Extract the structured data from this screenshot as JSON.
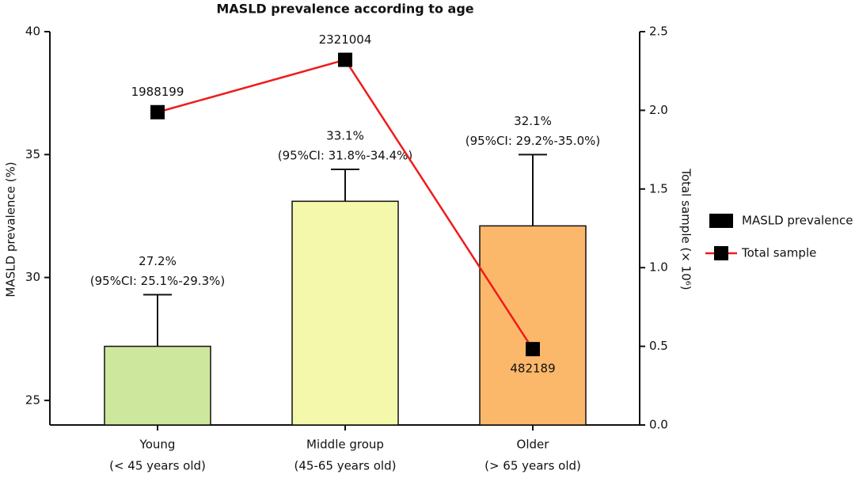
{
  "chart_data": {
    "type": "bar",
    "title": "MASLD prevalence according to age",
    "y_label": "MASLD prevalence (%)",
    "y2_label": "Total sample (× 10⁶)",
    "categories": [
      "Young",
      "Middle group",
      "Older"
    ],
    "category_notes": [
      "(< 45 years old)",
      "(45-65 years old)",
      "(> 65 years old)"
    ],
    "series": [
      {
        "name": "MASLD prevalence",
        "type": "bar",
        "color": "#000000",
        "bar_colors": [
          "#cde89d",
          "#f3f8aa",
          "#fbb86b"
        ],
        "values": [
          27.2,
          33.1,
          32.1
        ],
        "value_labels": [
          "27.2%",
          "33.1%",
          "32.1%"
        ],
        "ci_low": [
          25.1,
          31.8,
          29.2
        ],
        "ci_high": [
          29.3,
          34.4,
          35.0
        ],
        "ci_labels": [
          "(95%CI: 25.1%-29.3%)",
          "(95%CI: 31.8%-34.4%)",
          "(95%CI: 29.2%-35.0%)"
        ]
      },
      {
        "name": "Total sample",
        "type": "line",
        "axis": "y2",
        "color": "#ee1c1c",
        "values": [
          1.988199,
          2.321004,
          0.482189
        ],
        "value_labels": [
          "1988199",
          "2321004",
          "482189"
        ]
      }
    ],
    "ylim": [
      24,
      40
    ],
    "yticks": [
      25,
      30,
      35,
      40
    ],
    "y2lim": [
      0,
      2.5
    ],
    "y2ticks": [
      {
        "value": 0,
        "label": "0.0"
      },
      0.5,
      {
        "value": 1,
        "label": "1.0"
      },
      1.5,
      {
        "value": 2,
        "label": "2.0"
      },
      2.5
    ],
    "legend": "right"
  }
}
